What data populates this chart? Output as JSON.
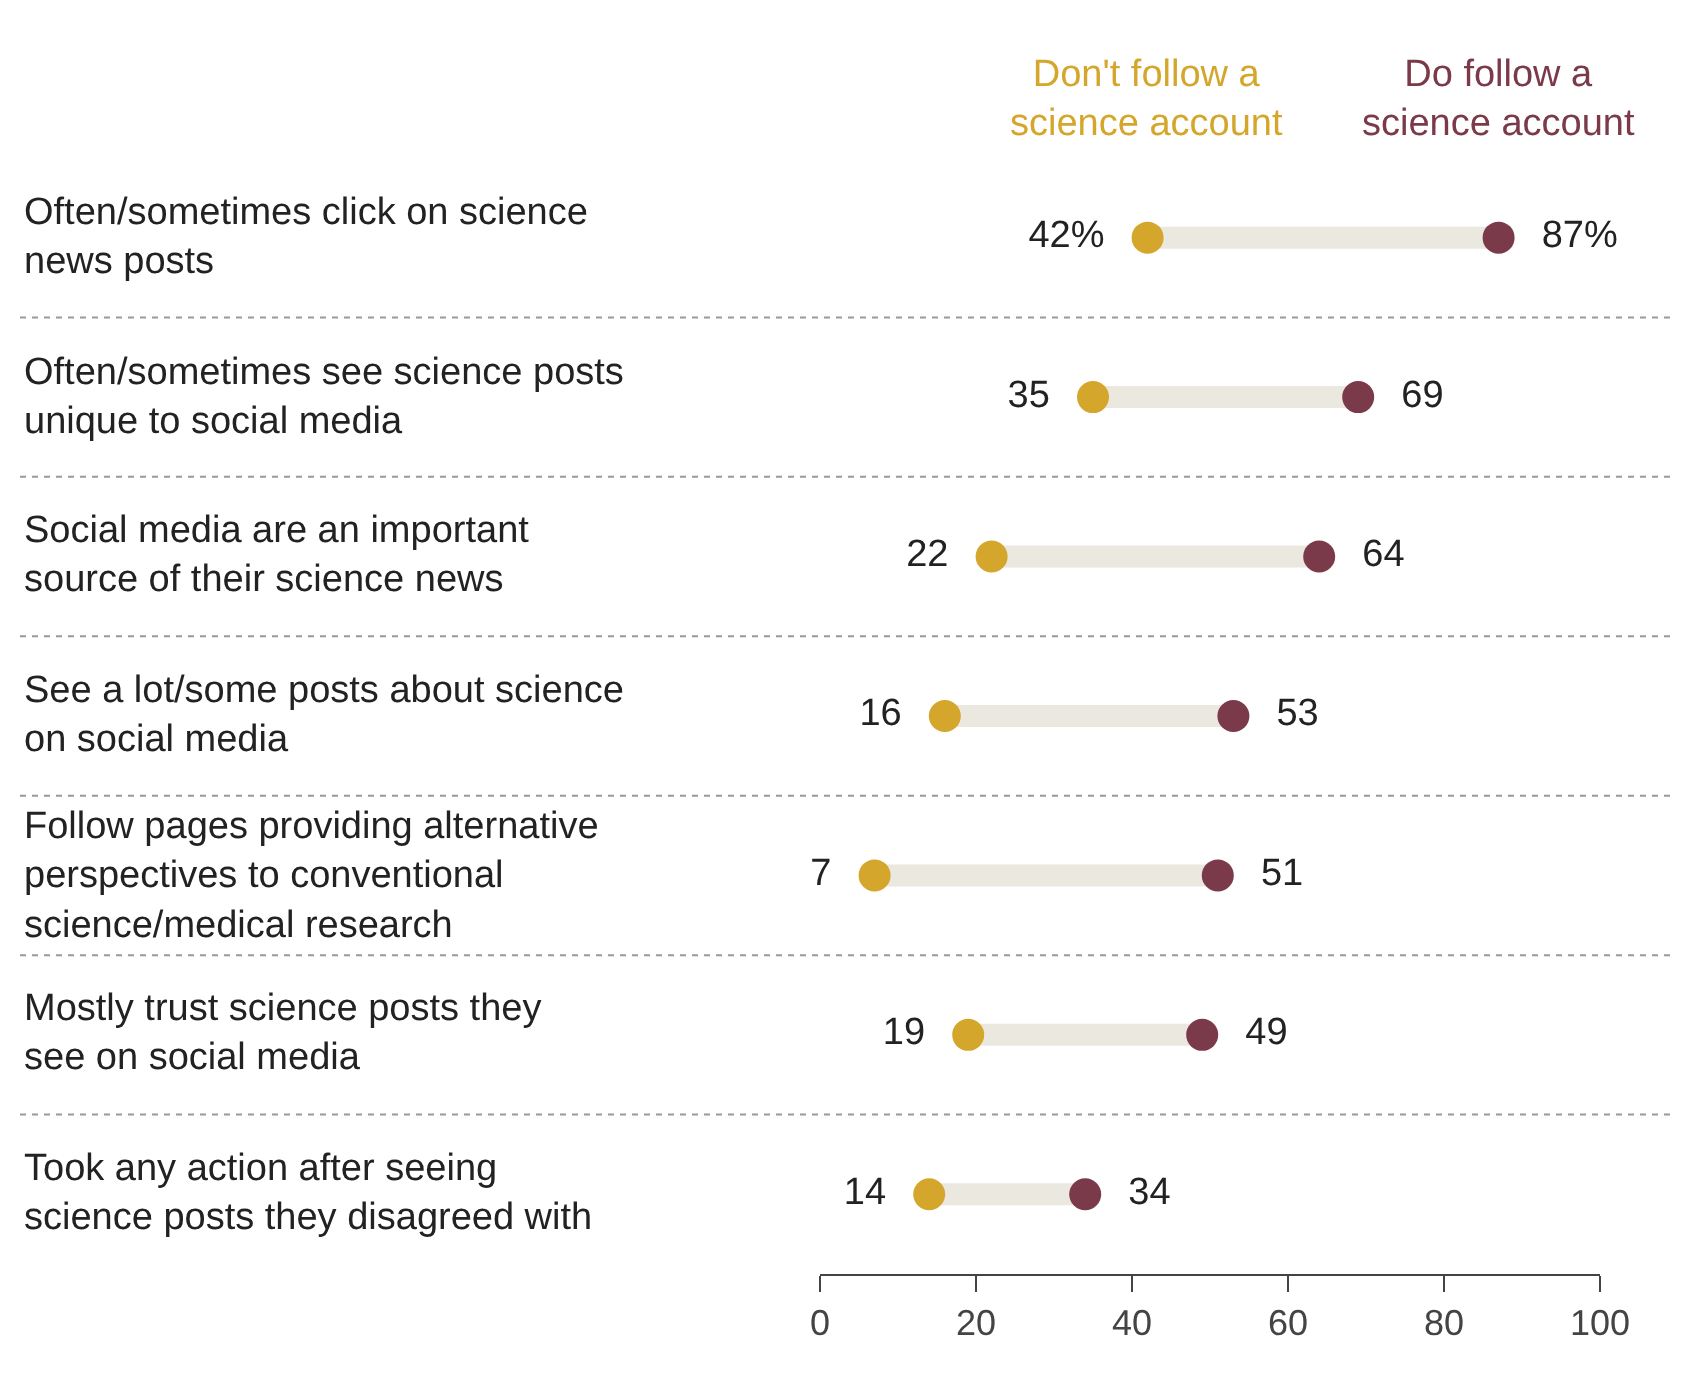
{
  "chart_data": {
    "type": "scatter",
    "orientation": "horizontal",
    "categories": [
      "Often/sometimes click on science news posts",
      "Often/sometimes see science posts unique to social media",
      "Social media are an important source of their science news",
      "See a lot/some posts about science on social media",
      "Follow pages providing alternative perspectives to conventional science/medical research",
      "Mostly trust science posts they see on social media",
      "Took any action after seeing science posts they disagreed with"
    ],
    "series": [
      {
        "name": "Don't follow a science account",
        "color": "#d4a72c",
        "values": [
          42,
          35,
          22,
          16,
          7,
          19,
          14
        ],
        "value_labels": [
          "42%",
          "35",
          "22",
          "16",
          "7",
          "19",
          "14"
        ]
      },
      {
        "name": "Do follow a science account",
        "color": "#7b3a4a",
        "values": [
          87,
          69,
          64,
          53,
          51,
          49,
          34
        ],
        "value_labels": [
          "87%",
          "69",
          "64",
          "53",
          "51",
          "49",
          "34"
        ]
      }
    ],
    "xlim": [
      0,
      100
    ],
    "xticks": [
      0,
      20,
      40,
      60,
      80,
      100
    ],
    "marker": "circle",
    "grid": false,
    "legend": false
  }
}
